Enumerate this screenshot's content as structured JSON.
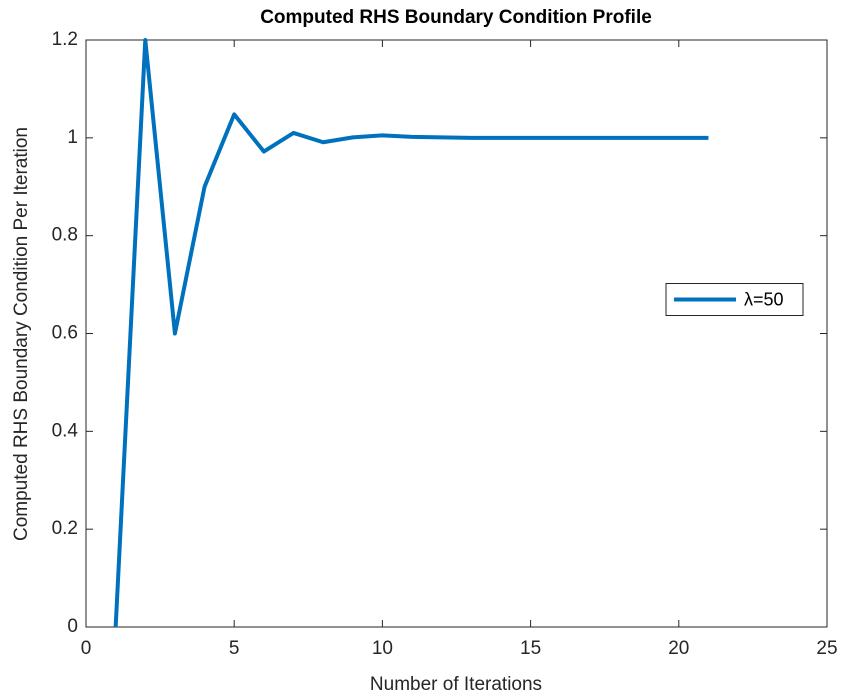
{
  "chart_data": {
    "type": "line",
    "title": "Computed RHS Boundary Condition Profile",
    "xlabel": "Number of Iterations",
    "ylabel": "Computed RHS Boundary Condition Per Iteration",
    "x": [
      1,
      2,
      3,
      4,
      5,
      6,
      7,
      8,
      9,
      10,
      11,
      12,
      13,
      14,
      15,
      16,
      17,
      18,
      19,
      20,
      21
    ],
    "series": [
      {
        "name": "λ=50",
        "color": "#0072bd",
        "values": [
          0,
          1.2,
          0.6,
          0.9,
          1.048,
          0.972,
          1.01,
          0.991,
          1.001,
          1.005,
          1.002,
          1.001,
          1.0,
          1.0,
          1.0,
          1.0,
          1.0,
          1.0,
          1.0,
          1.0,
          1.0
        ]
      }
    ],
    "xlim": [
      0,
      25
    ],
    "xticks": [
      0,
      5,
      10,
      15,
      20,
      25
    ],
    "ylim": [
      0,
      1.2
    ],
    "yticks": [
      0,
      0.2,
      0.4,
      0.6,
      0.8,
      1,
      1.2
    ],
    "legend": "east",
    "grid": false
  }
}
